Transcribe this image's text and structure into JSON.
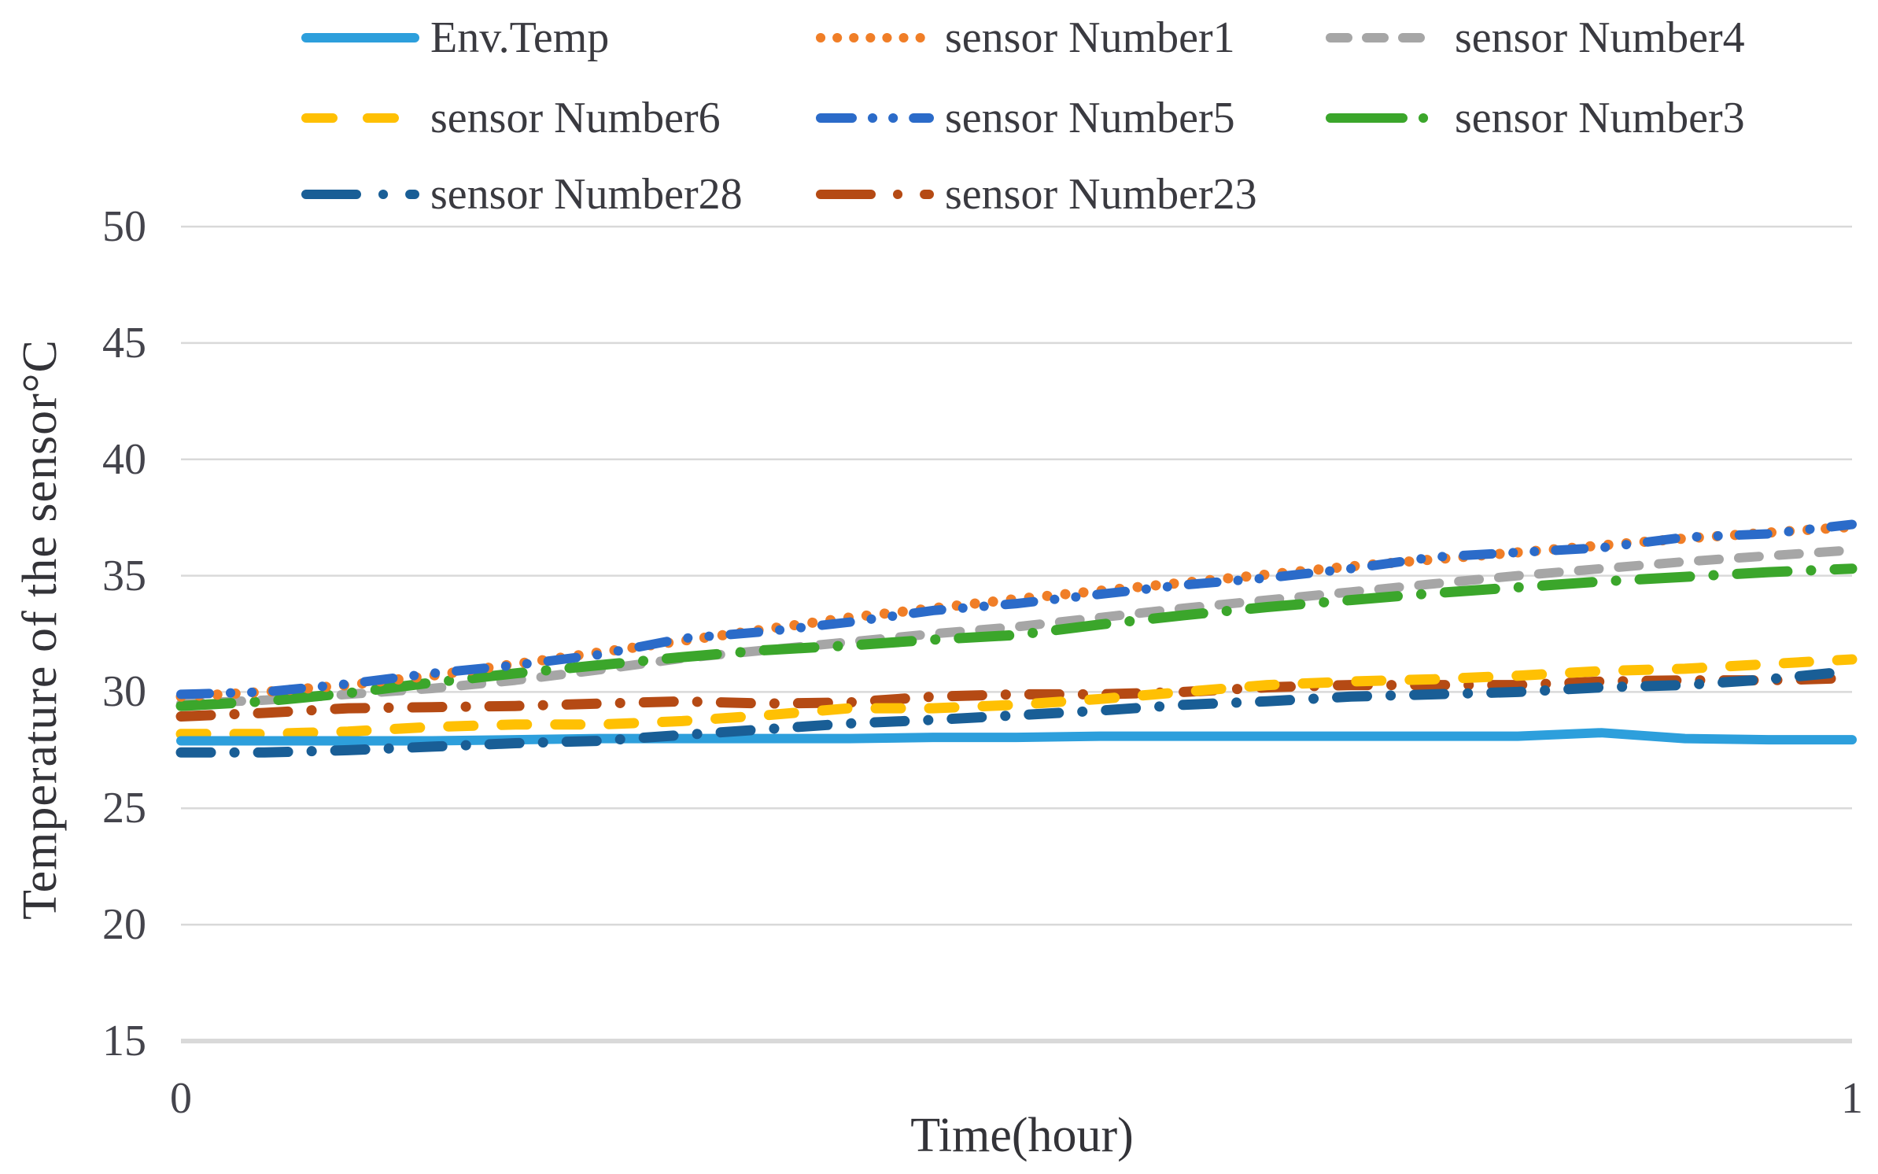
{
  "chart_data": {
    "type": "line",
    "title": "",
    "xlabel": "Time(hour)",
    "ylabel": "Temperature of the sensor°C",
    "xlim": [
      0,
      1
    ],
    "ylim": [
      15,
      50
    ],
    "xticks": [
      0,
      1
    ],
    "yticks": [
      15,
      20,
      25,
      30,
      35,
      40,
      45,
      50
    ],
    "grid": true,
    "legend_position": "top",
    "grid_color": "#d9d9d9",
    "x": [
      0,
      0.05,
      0.1,
      0.15,
      0.2,
      0.25,
      0.3,
      0.35,
      0.4,
      0.45,
      0.5,
      0.55,
      0.6,
      0.65,
      0.7,
      0.75,
      0.8,
      0.85,
      0.9,
      0.95,
      1
    ],
    "series": [
      {
        "name": "Env.Temp",
        "color": "#2D9FDC",
        "style": "solid",
        "z": 7,
        "values": [
          27.9,
          27.9,
          27.9,
          27.9,
          27.95,
          28.0,
          28.0,
          28.0,
          28.0,
          28.05,
          28.05,
          28.1,
          28.1,
          28.1,
          28.1,
          28.1,
          28.1,
          28.25,
          28.0,
          27.95,
          27.95
        ]
      },
      {
        "name": "sensor Number1",
        "color": "#F07E27",
        "style": "dot",
        "z": 3,
        "values": [
          29.8,
          30.0,
          30.3,
          30.7,
          31.2,
          31.7,
          32.2,
          32.7,
          33.2,
          33.6,
          34.0,
          34.35,
          34.7,
          35.05,
          35.4,
          35.7,
          36.0,
          36.3,
          36.6,
          36.85,
          37.1
        ]
      },
      {
        "name": "sensor Number4",
        "color": "#A6A6A6",
        "style": "dash",
        "z": 1,
        "values": [
          29.5,
          29.65,
          29.9,
          30.15,
          30.5,
          30.95,
          31.45,
          31.8,
          32.15,
          32.5,
          32.8,
          33.2,
          33.6,
          33.95,
          34.3,
          34.65,
          35.0,
          35.3,
          35.6,
          35.85,
          36.1
        ]
      },
      {
        "name": "sensor Number6",
        "color": "#FFC003",
        "style": "long-dash",
        "z": 6,
        "values": [
          28.2,
          28.2,
          28.3,
          28.5,
          28.6,
          28.6,
          28.75,
          29.0,
          29.3,
          29.3,
          29.45,
          29.7,
          30.0,
          30.3,
          30.45,
          30.55,
          30.7,
          30.9,
          31.0,
          31.2,
          31.4
        ]
      },
      {
        "name": "sensor Number5",
        "color": "#2B6BC9",
        "style": "dash-dot-dot",
        "z": 4,
        "values": [
          29.9,
          30.0,
          30.35,
          30.8,
          31.15,
          31.6,
          32.3,
          32.6,
          33.0,
          33.5,
          33.8,
          34.2,
          34.6,
          34.9,
          35.3,
          35.8,
          36.0,
          36.2,
          36.65,
          36.8,
          37.2
        ]
      },
      {
        "name": "sensor Number3",
        "color": "#3BA62B",
        "style": "long-dash-dot",
        "z": 2,
        "values": [
          29.4,
          29.6,
          29.95,
          30.4,
          30.8,
          31.15,
          31.5,
          31.8,
          32.0,
          32.25,
          32.45,
          32.9,
          33.3,
          33.65,
          33.95,
          34.25,
          34.5,
          34.75,
          34.95,
          35.15,
          35.3
        ]
      },
      {
        "name": "sensor Number28",
        "color": "#195E96",
        "style": "dash-dot",
        "z": 8,
        "values": [
          27.4,
          27.4,
          27.5,
          27.65,
          27.8,
          27.9,
          28.15,
          28.4,
          28.65,
          28.8,
          29.0,
          29.2,
          29.45,
          29.6,
          29.8,
          29.9,
          30.0,
          30.2,
          30.3,
          30.55,
          30.9
        ]
      },
      {
        "name": "sensor Number23",
        "color": "#B54A14",
        "style": "dash-dot",
        "z": 5,
        "values": [
          28.95,
          29.1,
          29.3,
          29.35,
          29.4,
          29.5,
          29.6,
          29.5,
          29.55,
          29.8,
          29.9,
          29.9,
          30.0,
          30.2,
          30.3,
          30.3,
          30.3,
          30.45,
          30.5,
          30.5,
          30.6
        ]
      }
    ]
  }
}
